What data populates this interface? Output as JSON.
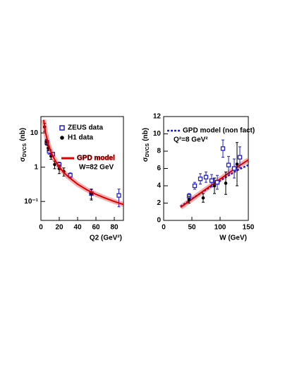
{
  "chart_data": [
    {
      "type": "scatter",
      "ylabel": {
        "symbol": "σ",
        "subscript": "DVCS",
        "unit": "(nb)"
      },
      "xlabel": "Q2 (GeV²)",
      "xlim": [
        0,
        90
      ],
      "xticks": [
        0,
        20,
        40,
        60,
        80
      ],
      "ylim": [
        0.028,
        30
      ],
      "yscale": "log",
      "yticks": [
        {
          "value": 0.1,
          "label": "10⁻¹"
        },
        1,
        {
          "value": 10,
          "label": "10"
        }
      ],
      "annotation": "W=82 GeV",
      "series": [
        {
          "name": "ZEUS data",
          "color": "#1f1fd0",
          "marker": "square",
          "x": [
            6.5,
            9,
            13,
            20,
            32,
            55,
            85
          ],
          "values": [
            5.3,
            2.9,
            2.4,
            1.2,
            0.58,
            0.17,
            0.15
          ],
          "errors": [
            0.9,
            0.5,
            0.3,
            0.2,
            0.1,
            0.05,
            0.08
          ]
        },
        {
          "name": "H1 data",
          "color": "#000000",
          "marker": "circle",
          "x": [
            4,
            6,
            8,
            11,
            15,
            20,
            25,
            55
          ],
          "values": [
            15,
            5.5,
            3.6,
            2.1,
            1.2,
            0.9,
            0.75,
            0.17
          ],
          "errors": [
            4,
            1,
            0.6,
            0.4,
            0.3,
            0.25,
            0.2,
            0.06
          ]
        },
        {
          "name": "GPD model",
          "color": "#e00000",
          "marker": "line",
          "x": [
            3,
            5,
            8,
            12,
            16,
            20,
            25,
            30,
            40,
            50,
            60,
            70,
            80,
            90
          ],
          "values": [
            24,
            10.3,
            4.7,
            2.39,
            1.48,
            1.01,
            0.7,
            0.52,
            0.32,
            0.22,
            0.162,
            0.126,
            0.1,
            0.082
          ]
        }
      ]
    },
    {
      "type": "scatter",
      "ylabel": {
        "symbol": "σ",
        "subscript": "DVCS",
        "unit": "(nb)"
      },
      "xlabel": "W (GeV)",
      "xlim": [
        0,
        150
      ],
      "xticks": [
        0,
        50,
        100,
        150
      ],
      "ylim": [
        0,
        12
      ],
      "yticks": [
        0,
        2,
        4,
        6,
        8,
        10,
        12
      ],
      "annotation": "Q²=8 GeV²",
      "series": [
        {
          "name": "GPD model (non fact)",
          "color": "#1f1fd0",
          "marker": "line",
          "dash": true,
          "x": [
            30,
            50,
            70,
            90,
            110,
            130,
            150
          ],
          "values": [
            1.6,
            2.48,
            3.34,
            4.17,
            4.99,
            5.78,
            6.4
          ]
        },
        {
          "color": "#e00000",
          "marker": "line",
          "x": [
            30,
            50,
            70,
            90,
            110,
            130,
            150
          ],
          "values": [
            1.5,
            2.44,
            3.38,
            4.31,
            5.23,
            6.15,
            7.0
          ]
        },
        {
          "color": "#1f1fd0",
          "marker": "square",
          "x": [
            45,
            55,
            65,
            75,
            85,
            95,
            105,
            115,
            125,
            135
          ],
          "values": [
            2.8,
            4.0,
            4.8,
            5.0,
            4.6,
            4.4,
            8.3,
            6.4,
            6.0,
            7.3
          ],
          "errors": [
            0.3,
            0.4,
            0.6,
            0.6,
            0.7,
            0.8,
            1.0,
            1.0,
            1.1,
            1.2
          ]
        },
        {
          "color": "#000000",
          "marker": "circle",
          "x": [
            45,
            70,
            90,
            110,
            130
          ],
          "values": [
            2.4,
            2.6,
            4.0,
            4.3,
            6.5
          ],
          "errors": [
            0.4,
            0.5,
            0.9,
            1.3,
            2.5
          ]
        }
      ]
    }
  ]
}
